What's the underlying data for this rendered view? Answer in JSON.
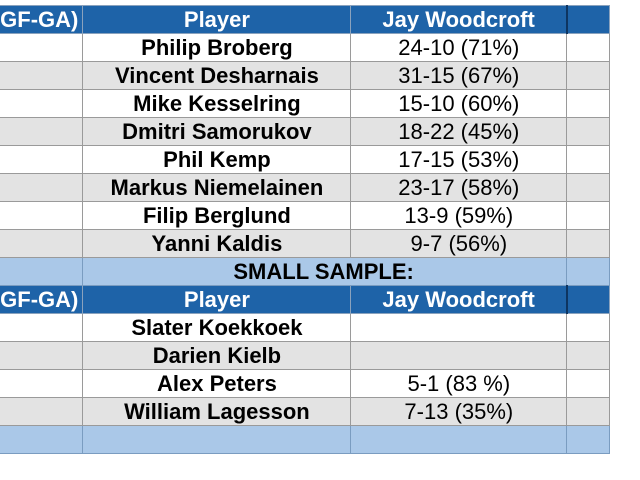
{
  "colors": {
    "header_bg": "#1e63a8",
    "header_text": "#ffffff",
    "band_bg": "#aac8e8",
    "stripe_bg": "#e3e3e3"
  },
  "header_top": {
    "col1": "GF-GA)",
    "col2": "Player",
    "col3": "Jay Woodcroft"
  },
  "rows_top": [
    {
      "player": "Philip Broberg",
      "stat": "24-10 (71%)"
    },
    {
      "player": "Vincent Desharnais",
      "stat": "31-15 (67%)"
    },
    {
      "player": "Mike Kesselring",
      "stat": "15-10 (60%)"
    },
    {
      "player": "Dmitri Samorukov",
      "stat": "18-22 (45%)"
    },
    {
      "player": "Phil Kemp",
      "stat": "17-15 (53%)"
    },
    {
      "player": "Markus Niemelainen",
      "stat": "23-17 (58%)"
    },
    {
      "player": "Filip Berglund",
      "stat": "13-9 (59%)"
    },
    {
      "player": "Yanni Kaldis",
      "stat": "9-7 (56%)"
    }
  ],
  "band_label": "SMALL SAMPLE:",
  "header_bottom": {
    "col1": "GF-GA)",
    "col2": "Player",
    "col3": "Jay Woodcroft"
  },
  "rows_bottom": [
    {
      "player": "Slater Koekkoek",
      "stat": ""
    },
    {
      "player": "Darien Kielb",
      "stat": ""
    },
    {
      "player": "Alex Peters",
      "stat": "5-1 (83 %)"
    },
    {
      "player": "William Lagesson",
      "stat": "7-13 (35%)"
    }
  ]
}
